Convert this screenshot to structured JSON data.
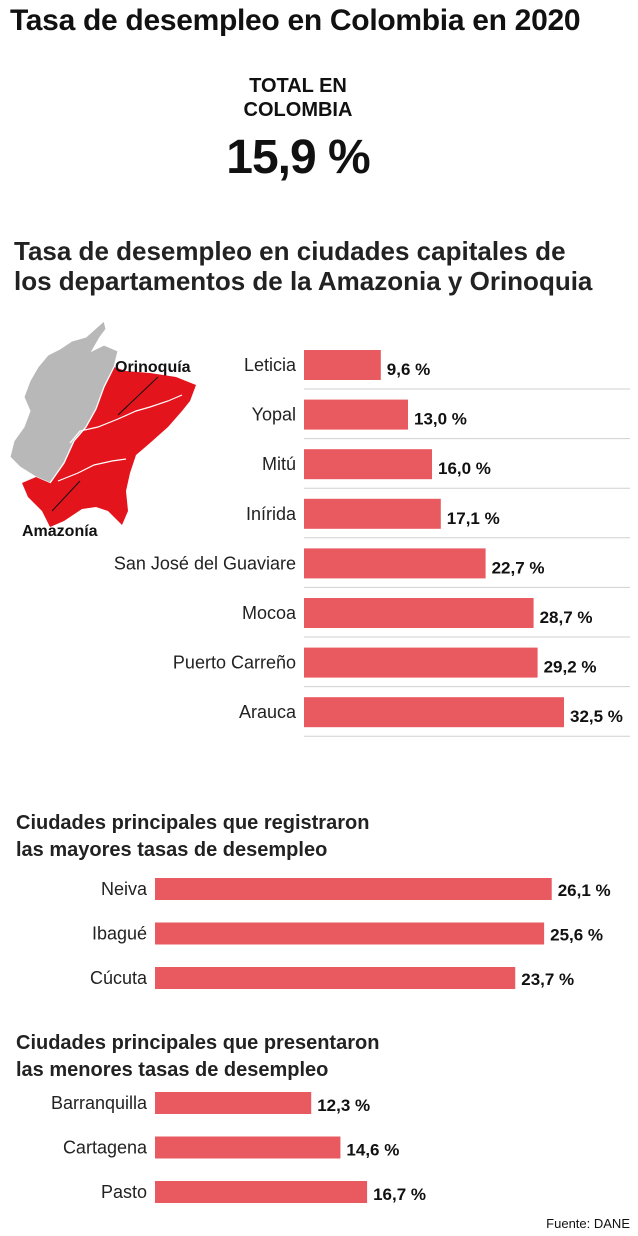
{
  "title": "Tasa de desempleo en Colombia en 2020",
  "total": {
    "label_line1": "TOTAL EN",
    "label_line2": "COLOMBIA",
    "value": "15,9 %"
  },
  "map": {
    "label_orinoquia": "Orinoquía",
    "label_amazonia": "Amazonía"
  },
  "colors": {
    "bar": "#e85a5f",
    "map_region": "#e3141c",
    "map_rest": "#b8b8b8"
  },
  "source": "Fuente: DANE",
  "chart_data": [
    {
      "type": "bar",
      "orientation": "horizontal",
      "title_line1": "Tasa de desempleo en ciudades capitales de",
      "title_line2": "los departamentos de la Amazonia y Orinoquia",
      "categories": [
        "Leticia",
        "Yopal",
        "Mitú",
        "Inírida",
        "San José del Guaviare",
        "Mocoa",
        "Puerto Carreño",
        "Arauca"
      ],
      "values": [
        9.6,
        13.0,
        16.0,
        17.1,
        22.7,
        28.7,
        29.2,
        32.5
      ],
      "labels": [
        "9,6 %",
        "13,0 %",
        "16,0 %",
        "17,1 %",
        "22,7 %",
        "28,7 %",
        "29,2 %",
        "32,5 %"
      ]
    },
    {
      "type": "bar",
      "orientation": "horizontal",
      "title_line1": "Ciudades principales que registraron",
      "title_line2": "las mayores tasas de desempleo",
      "categories": [
        "Neiva",
        "Ibagué",
        "Cúcuta"
      ],
      "values": [
        26.1,
        25.6,
        23.7
      ],
      "labels": [
        "26,1 %",
        "25,6 %",
        "23,7 %"
      ]
    },
    {
      "type": "bar",
      "orientation": "horizontal",
      "title_line1": "Ciudades principales que presentaron",
      "title_line2": "las menores tasas de desempleo",
      "categories": [
        "Barranquilla",
        "Cartagena",
        "Pasto"
      ],
      "values": [
        12.3,
        14.6,
        16.7
      ],
      "labels": [
        "12,3 %",
        "14,6 %",
        "16,7 %"
      ]
    }
  ]
}
